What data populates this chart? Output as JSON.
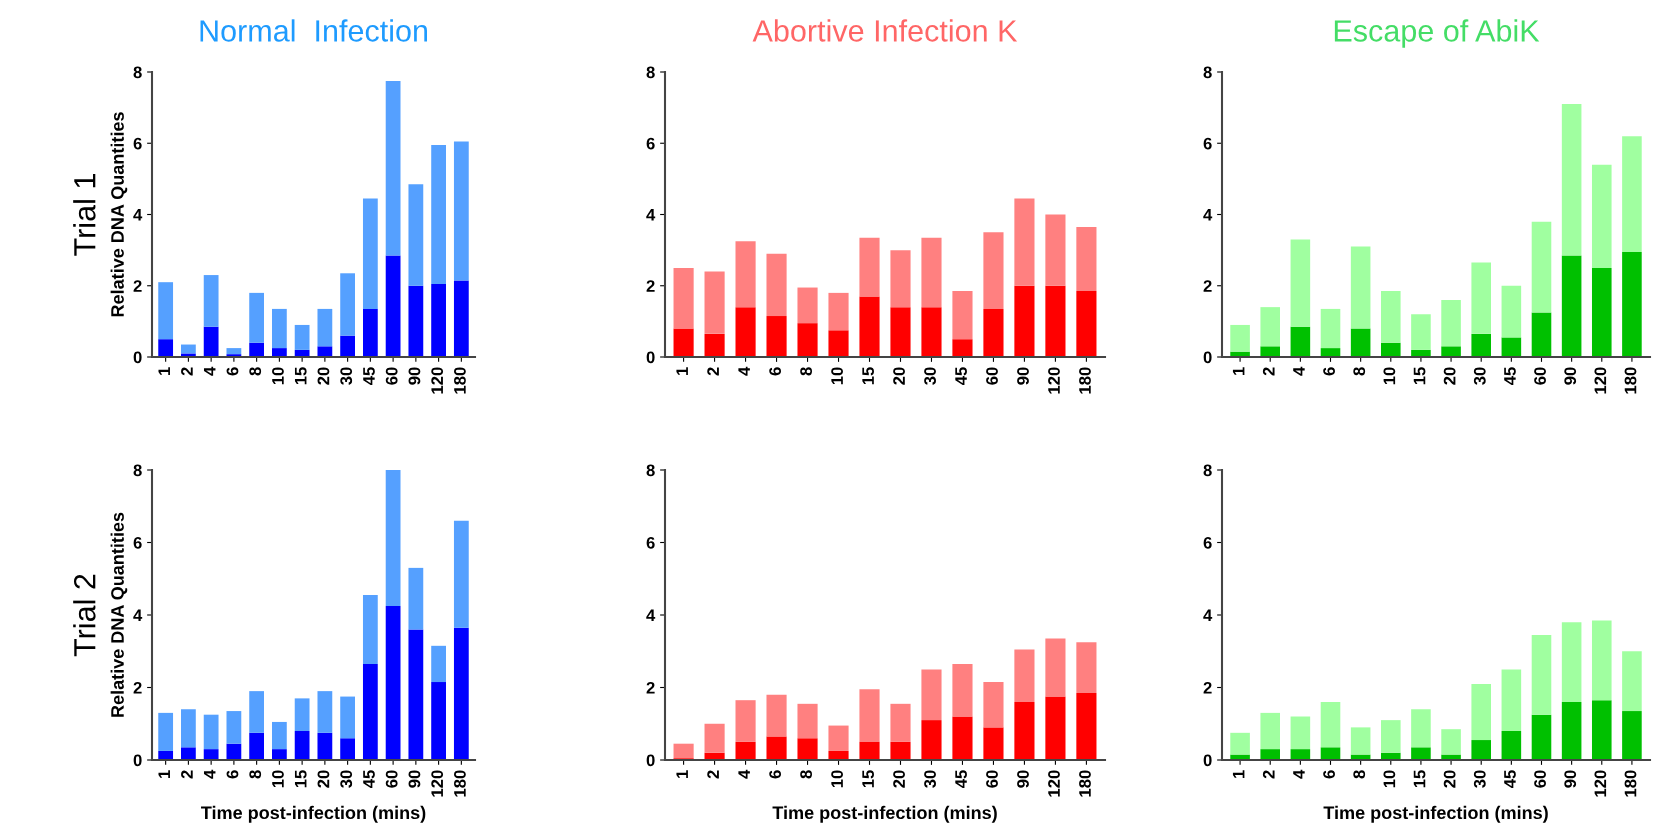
{
  "chart_data": [
    {
      "type": "bar",
      "title": "Normal  Infection",
      "ylabel": "Relative DNA Quantities",
      "annotations": [
        "Trial 1"
      ],
      "stacked": true,
      "categories": [
        "1",
        "2",
        "4",
        "6",
        "8",
        "10",
        "15",
        "20",
        "30",
        "45",
        "60",
        "90",
        "120",
        "180"
      ],
      "ylim": [
        0,
        8
      ],
      "yticks": [
        0,
        2,
        4,
        6,
        8
      ],
      "series": [
        {
          "color": "#0000ff",
          "values": [
            0.5,
            0.1,
            0.85,
            0.08,
            0.4,
            0.25,
            0.2,
            0.3,
            0.6,
            1.35,
            2.85,
            2.0,
            2.05,
            2.15
          ]
        },
        {
          "color": "#55a0ff",
          "values": [
            1.6,
            0.25,
            1.45,
            0.17,
            1.4,
            1.1,
            0.7,
            1.05,
            1.75,
            3.1,
            4.9,
            2.85,
            3.9,
            3.9
          ]
        }
      ]
    },
    {
      "type": "bar",
      "title": "Abortive Infection K",
      "stacked": true,
      "categories": [
        "1",
        "2",
        "4",
        "6",
        "8",
        "10",
        "15",
        "20",
        "30",
        "45",
        "60",
        "90",
        "120",
        "180"
      ],
      "ylim": [
        0,
        8
      ],
      "yticks": [
        0,
        2,
        4,
        6,
        8
      ],
      "series": [
        {
          "color": "#ff0000",
          "values": [
            0.8,
            0.65,
            1.4,
            1.15,
            0.95,
            0.75,
            1.7,
            1.4,
            1.4,
            0.5,
            1.35,
            2.0,
            2.0,
            1.85
          ]
        },
        {
          "color": "#ff8080",
          "values": [
            1.7,
            1.75,
            1.85,
            1.75,
            1.0,
            1.05,
            1.65,
            1.6,
            1.95,
            1.35,
            2.15,
            2.45,
            2.0,
            1.8
          ]
        }
      ]
    },
    {
      "type": "bar",
      "title": "Escape of AbiK",
      "stacked": true,
      "categories": [
        "1",
        "2",
        "4",
        "6",
        "8",
        "10",
        "15",
        "20",
        "30",
        "45",
        "60",
        "90",
        "120",
        "180"
      ],
      "ylim": [
        0,
        8
      ],
      "yticks": [
        0,
        2,
        4,
        6,
        8
      ],
      "series": [
        {
          "color": "#00c000",
          "values": [
            0.15,
            0.3,
            0.85,
            0.25,
            0.8,
            0.4,
            0.2,
            0.3,
            0.65,
            0.55,
            1.25,
            2.85,
            2.5,
            2.95
          ]
        },
        {
          "color": "#a0ffa0",
          "values": [
            0.75,
            1.1,
            2.45,
            1.1,
            2.3,
            1.45,
            1.0,
            1.3,
            2.0,
            1.45,
            2.55,
            4.25,
            2.9,
            3.25
          ]
        }
      ]
    },
    {
      "type": "bar",
      "ylabel": "Relative DNA Quantities",
      "xlabel": "Time post-infection (mins)",
      "annotations": [
        "Trial 2"
      ],
      "stacked": true,
      "categories": [
        "1",
        "2",
        "4",
        "6",
        "8",
        "10",
        "15",
        "20",
        "30",
        "45",
        "60",
        "90",
        "120",
        "180"
      ],
      "ylim": [
        0,
        8
      ],
      "yticks": [
        0,
        2,
        4,
        6,
        8
      ],
      "series": [
        {
          "color": "#0000ff",
          "values": [
            0.25,
            0.35,
            0.3,
            0.45,
            0.75,
            0.3,
            0.8,
            0.75,
            0.6,
            2.65,
            4.25,
            3.6,
            2.15,
            3.65
          ]
        },
        {
          "color": "#55a0ff",
          "values": [
            1.05,
            1.05,
            0.95,
            0.9,
            1.15,
            0.75,
            0.9,
            1.15,
            1.15,
            1.9,
            3.75,
            1.7,
            1.0,
            2.95
          ]
        }
      ]
    },
    {
      "type": "bar",
      "xlabel": "Time post-infection (mins)",
      "stacked": true,
      "categories": [
        "1",
        "2",
        "4",
        "6",
        "8",
        "10",
        "15",
        "20",
        "30",
        "45",
        "60",
        "90",
        "120",
        "180"
      ],
      "ylim": [
        0,
        8
      ],
      "yticks": [
        0,
        2,
        4,
        6,
        8
      ],
      "series": [
        {
          "color": "#ff0000",
          "values": [
            0.05,
            0.2,
            0.5,
            0.65,
            0.6,
            0.25,
            0.5,
            0.5,
            1.1,
            1.2,
            0.9,
            1.6,
            1.75,
            1.85
          ]
        },
        {
          "color": "#ff8080",
          "values": [
            0.4,
            0.8,
            1.15,
            1.15,
            0.95,
            0.7,
            1.45,
            1.05,
            1.4,
            1.45,
            1.25,
            1.45,
            1.6,
            1.4
          ]
        }
      ]
    },
    {
      "type": "bar",
      "xlabel": "Time post-infection (mins)",
      "stacked": true,
      "categories": [
        "1",
        "2",
        "4",
        "6",
        "8",
        "10",
        "15",
        "20",
        "30",
        "45",
        "60",
        "90",
        "120",
        "180"
      ],
      "ylim": [
        0,
        8
      ],
      "yticks": [
        0,
        2,
        4,
        6,
        8
      ],
      "series": [
        {
          "color": "#00c000",
          "values": [
            0.15,
            0.3,
            0.3,
            0.35,
            0.15,
            0.2,
            0.35,
            0.15,
            0.55,
            0.8,
            1.25,
            1.6,
            1.65,
            1.35
          ]
        },
        {
          "color": "#a0ffa0",
          "values": [
            0.6,
            1.0,
            0.9,
            1.25,
            0.75,
            0.9,
            1.05,
            0.7,
            1.55,
            1.7,
            2.2,
            2.2,
            2.2,
            1.65
          ]
        }
      ]
    }
  ]
}
